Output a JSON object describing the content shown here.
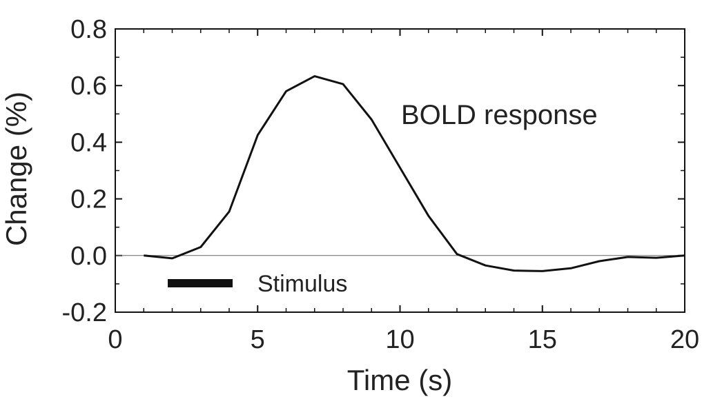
{
  "chart_data": {
    "type": "line",
    "title": "",
    "xlabel": "Time (s)",
    "ylabel": "Change (%)",
    "xlim": [
      0,
      20
    ],
    "ylim": [
      -0.2,
      0.8
    ],
    "xticks": [
      0,
      5,
      10,
      15,
      20
    ],
    "yticks": [
      -0.2,
      0,
      0.2,
      0.4,
      0.6,
      0.8
    ],
    "xtick_labels": [
      "0",
      "5",
      "10",
      "15",
      "20"
    ],
    "ytick_labels": [
      "-0.2",
      "0.0",
      "0.2",
      "0.4",
      "0.6",
      "0.8"
    ],
    "grid": false,
    "reference_line_y": 0,
    "annotation": "BOLD response",
    "legend": {
      "label": "Stimulus",
      "placement": "bottom-left"
    },
    "series": [
      {
        "x": [
          1,
          2,
          3,
          4,
          5,
          6,
          7,
          8,
          9,
          10,
          11,
          12,
          13,
          14,
          15,
          16,
          17,
          18,
          19,
          20
        ],
        "values": [
          0.0,
          -0.01,
          0.03,
          0.155,
          0.425,
          0.58,
          0.633,
          0.605,
          0.48,
          0.31,
          0.14,
          0.005,
          -0.035,
          -0.053,
          -0.055,
          -0.045,
          -0.02,
          -0.005,
          -0.008,
          0.0
        ]
      }
    ]
  }
}
